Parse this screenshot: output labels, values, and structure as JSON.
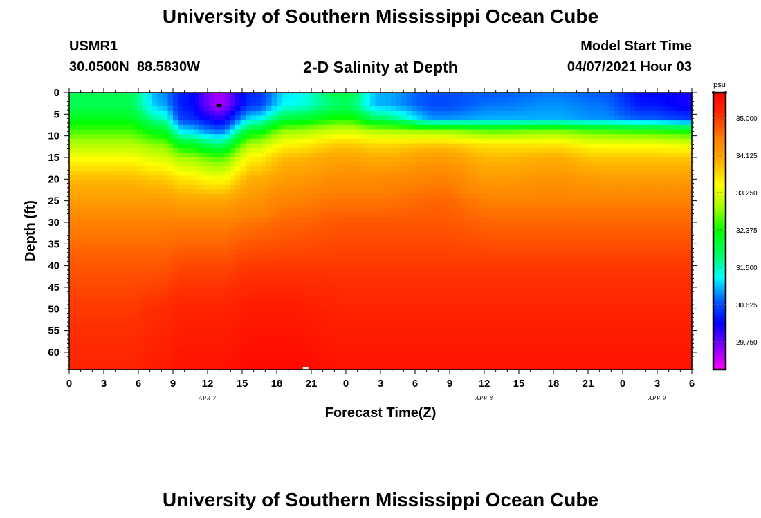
{
  "header": {
    "title": "University of Southern Mississippi Ocean Cube",
    "station_id": "USMR1",
    "coords": "30.0500N  88.5830W",
    "plot_title": "2-D Salinity at Depth",
    "model_start_label": "Model Start Time",
    "model_start_value": "04/07/2021 Hour 03"
  },
  "footer": {
    "title": "University of Southern Mississippi Ocean Cube"
  },
  "chart_data": {
    "type": "heatmap",
    "title": "2-D Salinity at Depth",
    "xlabel": "Forecast Time(Z)",
    "ylabel": "Depth (ft)",
    "x_unit": "hours since 04/07/2021 00Z",
    "xlim": [
      0,
      54
    ],
    "ylim": [
      0,
      64
    ],
    "y_inverted": true,
    "x_ticks": [
      {
        "h": 0,
        "label": "0"
      },
      {
        "h": 3,
        "label": "3"
      },
      {
        "h": 6,
        "label": "6"
      },
      {
        "h": 9,
        "label": "9"
      },
      {
        "h": 12,
        "label": "12"
      },
      {
        "h": 15,
        "label": "15"
      },
      {
        "h": 18,
        "label": "18"
      },
      {
        "h": 21,
        "label": "21"
      },
      {
        "h": 24,
        "label": "0"
      },
      {
        "h": 27,
        "label": "3"
      },
      {
        "h": 30,
        "label": "6"
      },
      {
        "h": 33,
        "label": "9"
      },
      {
        "h": 36,
        "label": "12"
      },
      {
        "h": 39,
        "label": "15"
      },
      {
        "h": 42,
        "label": "18"
      },
      {
        "h": 45,
        "label": "21"
      },
      {
        "h": 48,
        "label": "0"
      },
      {
        "h": 51,
        "label": "3"
      },
      {
        "h": 54,
        "label": "6"
      }
    ],
    "date_labels": [
      {
        "h": 12,
        "label": "APR 7"
      },
      {
        "h": 36,
        "label": "APR 8"
      },
      {
        "h": 51,
        "label": "APR 9"
      }
    ],
    "y_ticks": [
      0,
      5,
      10,
      15,
      20,
      25,
      30,
      35,
      40,
      45,
      50,
      55,
      60
    ],
    "colorbar": {
      "unit": "psu",
      "min": 29.1,
      "max": 35.6,
      "labels": [
        "35.000",
        "34.125",
        "33.250",
        "32.375",
        "31.500",
        "30.625",
        "29.750"
      ],
      "label_values": [
        35.0,
        34.125,
        33.25,
        32.375,
        31.5,
        30.625,
        29.75
      ],
      "colors": [
        "#ff00ff",
        "#8000ff",
        "#0000ff",
        "#0060ff",
        "#00ffff",
        "#00ff60",
        "#00ff00",
        "#a0ff00",
        "#ffff00",
        "#ffb000",
        "#ff8000",
        "#ff3000",
        "#ff0000"
      ]
    },
    "depth_profile_depths": [
      0,
      3,
      6,
      9,
      12,
      15,
      20,
      25,
      30,
      40,
      50,
      64
    ],
    "profiles": [
      {
        "h": 0,
        "values": [
          31.9,
          31.9,
          32.2,
          32.6,
          33.0,
          33.4,
          33.9,
          34.2,
          34.5,
          34.8,
          35.0,
          35.2
        ]
      },
      {
        "h": 5,
        "values": [
          31.9,
          31.9,
          32.2,
          32.6,
          33.0,
          33.4,
          33.9,
          34.2,
          34.5,
          34.8,
          35.0,
          35.2
        ]
      },
      {
        "h": 8,
        "values": [
          30.9,
          31.0,
          31.5,
          32.2,
          32.8,
          33.2,
          33.8,
          34.2,
          34.5,
          34.8,
          35.1,
          35.3
        ]
      },
      {
        "h": 10,
        "values": [
          30.3,
          30.3,
          30.5,
          31.2,
          32.2,
          32.9,
          33.6,
          34.1,
          34.5,
          34.9,
          35.2,
          35.4
        ]
      },
      {
        "h": 13,
        "values": [
          29.5,
          29.5,
          30.0,
          30.8,
          31.8,
          32.6,
          33.4,
          34.1,
          34.5,
          34.9,
          35.2,
          35.4
        ]
      },
      {
        "h": 16,
        "values": [
          30.4,
          30.5,
          31.2,
          32.2,
          33.0,
          33.5,
          34.0,
          34.3,
          34.6,
          35.0,
          35.3,
          35.5
        ]
      },
      {
        "h": 19,
        "values": [
          31.2,
          31.3,
          32.0,
          32.9,
          33.5,
          33.9,
          34.2,
          34.5,
          34.7,
          35.0,
          35.3,
          35.5
        ]
      },
      {
        "h": 24,
        "values": [
          32.0,
          31.8,
          32.4,
          33.2,
          33.8,
          34.1,
          34.4,
          34.6,
          34.8,
          35.0,
          35.2,
          35.4
        ]
      },
      {
        "h": 27,
        "values": [
          31.0,
          31.0,
          31.8,
          33.0,
          33.7,
          34.0,
          34.4,
          34.6,
          34.8,
          35.0,
          35.2,
          35.4
        ]
      },
      {
        "h": 32,
        "values": [
          30.6,
          30.6,
          30.9,
          32.9,
          33.8,
          34.2,
          34.5,
          34.7,
          34.8,
          35.0,
          35.2,
          35.4
        ]
      },
      {
        "h": 37,
        "values": [
          30.7,
          30.8,
          31.0,
          32.7,
          33.6,
          33.9,
          34.2,
          34.5,
          34.7,
          35.0,
          35.2,
          35.4
        ]
      },
      {
        "h": 42,
        "values": [
          30.8,
          30.9,
          31.0,
          32.8,
          33.6,
          34.0,
          34.3,
          34.5,
          34.7,
          35.0,
          35.2,
          35.4
        ]
      },
      {
        "h": 46,
        "values": [
          30.7,
          30.8,
          30.9,
          32.6,
          33.4,
          33.8,
          34.2,
          34.5,
          34.7,
          35.0,
          35.2,
          35.4
        ]
      },
      {
        "h": 50,
        "values": [
          30.2,
          30.3,
          30.7,
          32.5,
          33.4,
          33.8,
          34.2,
          34.5,
          34.7,
          35.0,
          35.2,
          35.4
        ]
      },
      {
        "h": 54,
        "values": [
          30.1,
          30.1,
          30.5,
          32.4,
          33.3,
          33.8,
          34.2,
          34.5,
          34.7,
          35.0,
          35.2,
          35.4
        ]
      }
    ],
    "markers": [
      {
        "h": 13,
        "depth": 3,
        "color": "#000000"
      },
      {
        "h": 20.5,
        "depth": 64,
        "color": "#ffffff"
      }
    ]
  }
}
